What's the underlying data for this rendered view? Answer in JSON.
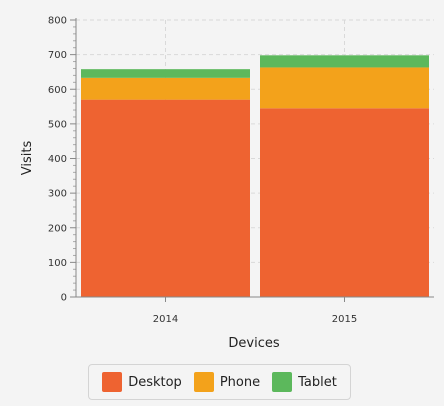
{
  "chart_data": {
    "type": "bar",
    "stacked": true,
    "categories": [
      "2014",
      "2015"
    ],
    "series": [
      {
        "name": "Desktop",
        "values": [
          570,
          545
        ],
        "color": "#ee6331"
      },
      {
        "name": "Phone",
        "values": [
          63,
          118
        ],
        "color": "#f3a21b"
      },
      {
        "name": "Tablet",
        "values": [
          25,
          35
        ],
        "color": "#5cb85c"
      }
    ],
    "xlabel": "Devices",
    "ylabel": "Visits",
    "ylim": [
      0,
      800
    ],
    "yticks": [
      0,
      100,
      200,
      300,
      400,
      500,
      600,
      700,
      800
    ],
    "grid": true,
    "legend_position": "bottom"
  }
}
